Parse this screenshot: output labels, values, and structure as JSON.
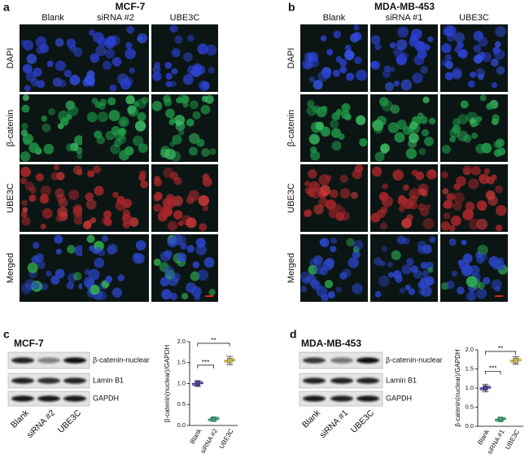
{
  "panels": [
    {
      "label": "a",
      "title": "MCF-7",
      "columns": [
        "Blank",
        "siRNA #2",
        "UBE3C"
      ],
      "rows": [
        "DAPI",
        "β-catenin",
        "UBE3C",
        "Merged"
      ]
    },
    {
      "label": "b",
      "title": "MDA-MB-453",
      "columns": [
        "Blank",
        "siRNA #1",
        "UBE3C"
      ],
      "rows": [
        "DAPI",
        "β-catenin",
        "UBE3C",
        "Merged"
      ]
    }
  ],
  "blots": [
    {
      "label": "c",
      "title": "MCF-7",
      "bands": [
        "β-catenin-nuclear",
        "Lamin B1",
        "GAPDH"
      ],
      "lanes": [
        "Blank",
        "siRNA #2",
        "UBE3C"
      ]
    },
    {
      "label": "d",
      "title": "MDA-MB-453",
      "bands": [
        "β-catenin-nuclear",
        "Lamin B1",
        "GAPDH"
      ],
      "lanes": [
        "Blank",
        "siRNA #1",
        "UBE3C"
      ]
    }
  ],
  "chart_data": [
    {
      "type": "dot",
      "y_label": "β-catenin(nuclear)/GAPDH",
      "categories": [
        "Blank",
        "siRNA #2",
        "UBE3C"
      ],
      "values": [
        1.0,
        0.15,
        1.55
      ],
      "errors": [
        0.07,
        0.03,
        0.1
      ],
      "colors": [
        "#4a3f9c",
        "#3a9a6e",
        "#c4b54a"
      ],
      "ylim": [
        0,
        2
      ],
      "yticks": [
        {
          "value": 0,
          "label": "0.0"
        },
        0.5,
        {
          "value": 1,
          "label": "1.0"
        },
        1.5,
        {
          "value": 2,
          "label": "2.0"
        }
      ],
      "annotations": [
        "***",
        "**"
      ]
    },
    {
      "type": "dot",
      "y_label": "β-catenin(nuclear)/GAPDH",
      "categories": [
        "Blank",
        "siRNA #1",
        "UBE3C"
      ],
      "values": [
        1.0,
        0.18,
        1.72
      ],
      "errors": [
        0.1,
        0.03,
        0.1
      ],
      "colors": [
        "#4a3f9c",
        "#3a9a6e",
        "#c4b54a"
      ],
      "ylim": [
        0,
        2
      ],
      "yticks": [
        {
          "value": 0,
          "label": "0.0"
        },
        0.5,
        {
          "value": 1,
          "label": "1.0"
        },
        1.5,
        {
          "value": 2,
          "label": "2.0"
        }
      ],
      "annotations": [
        "***",
        "**"
      ]
    }
  ]
}
